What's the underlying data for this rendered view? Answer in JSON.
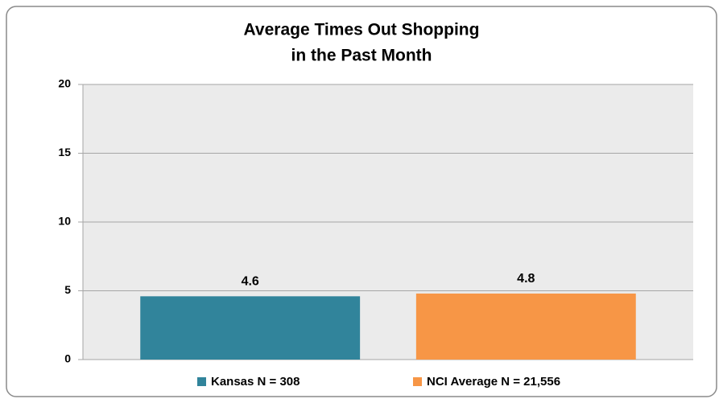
{
  "chart_data": {
    "type": "bar",
    "title": [
      "Average Times Out Shopping",
      "in the Past Month"
    ],
    "categories": [
      null
    ],
    "series": [
      {
        "name": "Kansas N = 308",
        "color": "#31849b",
        "values": [
          4.6
        ]
      },
      {
        "name": "NCI Average N = 21,556",
        "color": "#f79646",
        "values": [
          4.8
        ]
      }
    ],
    "ylim": [
      0,
      20
    ],
    "yticks": [
      0,
      5,
      10,
      15,
      20
    ],
    "grid": true,
    "legend": "bottom"
  }
}
